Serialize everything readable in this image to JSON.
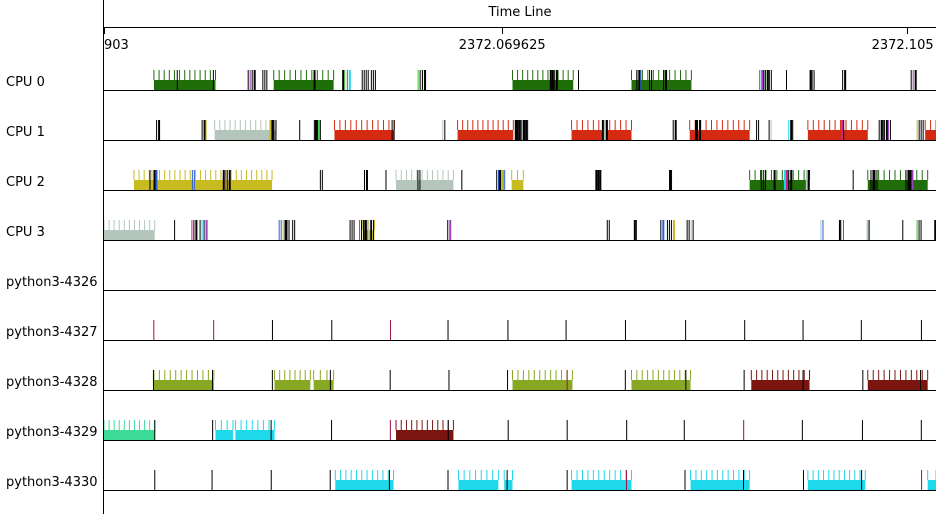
{
  "header": {
    "title": "Time Line"
  },
  "ticks": [
    {
      "label": "903",
      "x": 0.0
    },
    {
      "label": "2372.069625",
      "x": 0.478
    },
    {
      "label": "2372.105",
      "x": 0.965
    }
  ],
  "colors": {
    "dark_green": "#1f6e0a",
    "gray_green": "#b4c6bc",
    "red": "#d42a12",
    "yellow": "#c8bb20",
    "olive": "#88a823",
    "maroon": "#7a1510",
    "mint": "#3ddb98",
    "cyan": "#1ed8ec",
    "black": "#000000"
  },
  "rows": [
    {
      "label": "CPU 0",
      "blocks": [
        {
          "s": 0.06,
          "e": 0.134,
          "c": "dark_green"
        },
        {
          "s": 0.204,
          "e": 0.276,
          "c": "dark_green"
        },
        {
          "s": 0.491,
          "e": 0.564,
          "c": "dark_green"
        },
        {
          "s": 0.634,
          "e": 0.706,
          "c": "dark_green"
        }
      ]
    },
    {
      "label": "CPU 1",
      "blocks": [
        {
          "s": 0.133,
          "e": 0.207,
          "c": "gray_green"
        },
        {
          "s": 0.277,
          "e": 0.349,
          "c": "red"
        },
        {
          "s": 0.425,
          "e": 0.492,
          "c": "red"
        },
        {
          "s": 0.562,
          "e": 0.634,
          "c": "red"
        },
        {
          "s": 0.704,
          "e": 0.776,
          "c": "red"
        },
        {
          "s": 0.846,
          "e": 0.918,
          "c": "red"
        },
        {
          "s": 0.987,
          "e": 1.0,
          "c": "red"
        }
      ]
    },
    {
      "label": "CPU 2",
      "blocks": [
        {
          "s": 0.036,
          "e": 0.202,
          "c": "yellow"
        },
        {
          "s": 0.351,
          "e": 0.42,
          "c": "gray_green"
        },
        {
          "s": 0.49,
          "e": 0.504,
          "c": "yellow"
        },
        {
          "s": 0.776,
          "e": 0.848,
          "c": "dark_green"
        },
        {
          "s": 0.918,
          "e": 0.99,
          "c": "dark_green"
        }
      ]
    },
    {
      "label": "CPU 3",
      "blocks": [
        {
          "s": 0.0,
          "e": 0.061,
          "c": "gray_green"
        },
        {
          "s": 0.311,
          "e": 0.325,
          "c": "yellow"
        }
      ]
    },
    {
      "label": "python3-4326",
      "blocks": []
    },
    {
      "label": "python3-4327",
      "blocks": []
    },
    {
      "label": "python3-4328",
      "blocks": [
        {
          "s": 0.06,
          "e": 0.132,
          "c": "olive"
        },
        {
          "s": 0.205,
          "e": 0.248,
          "c": "olive"
        },
        {
          "s": 0.252,
          "e": 0.276,
          "c": "olive"
        },
        {
          "s": 0.491,
          "e": 0.563,
          "c": "olive"
        },
        {
          "s": 0.634,
          "e": 0.705,
          "c": "olive"
        },
        {
          "s": 0.778,
          "e": 0.848,
          "c": "maroon"
        },
        {
          "s": 0.918,
          "e": 0.99,
          "c": "maroon"
        }
      ]
    },
    {
      "label": "python3-4329",
      "blocks": [
        {
          "s": 0.0,
          "e": 0.061,
          "c": "mint"
        },
        {
          "s": 0.134,
          "e": 0.155,
          "c": "cyan"
        },
        {
          "s": 0.158,
          "e": 0.205,
          "c": "cyan"
        },
        {
          "s": 0.351,
          "e": 0.42,
          "c": "maroon"
        }
      ]
    },
    {
      "label": "python3-4330",
      "blocks": [
        {
          "s": 0.278,
          "e": 0.348,
          "c": "cyan"
        },
        {
          "s": 0.426,
          "e": 0.474,
          "c": "cyan"
        },
        {
          "s": 0.481,
          "e": 0.491,
          "c": "cyan"
        },
        {
          "s": 0.562,
          "e": 0.634,
          "c": "cyan"
        },
        {
          "s": 0.705,
          "e": 0.776,
          "c": "cyan"
        },
        {
          "s": 0.846,
          "e": 0.915,
          "c": "cyan"
        },
        {
          "s": 0.99,
          "e": 1.0,
          "c": "cyan"
        }
      ]
    }
  ]
}
